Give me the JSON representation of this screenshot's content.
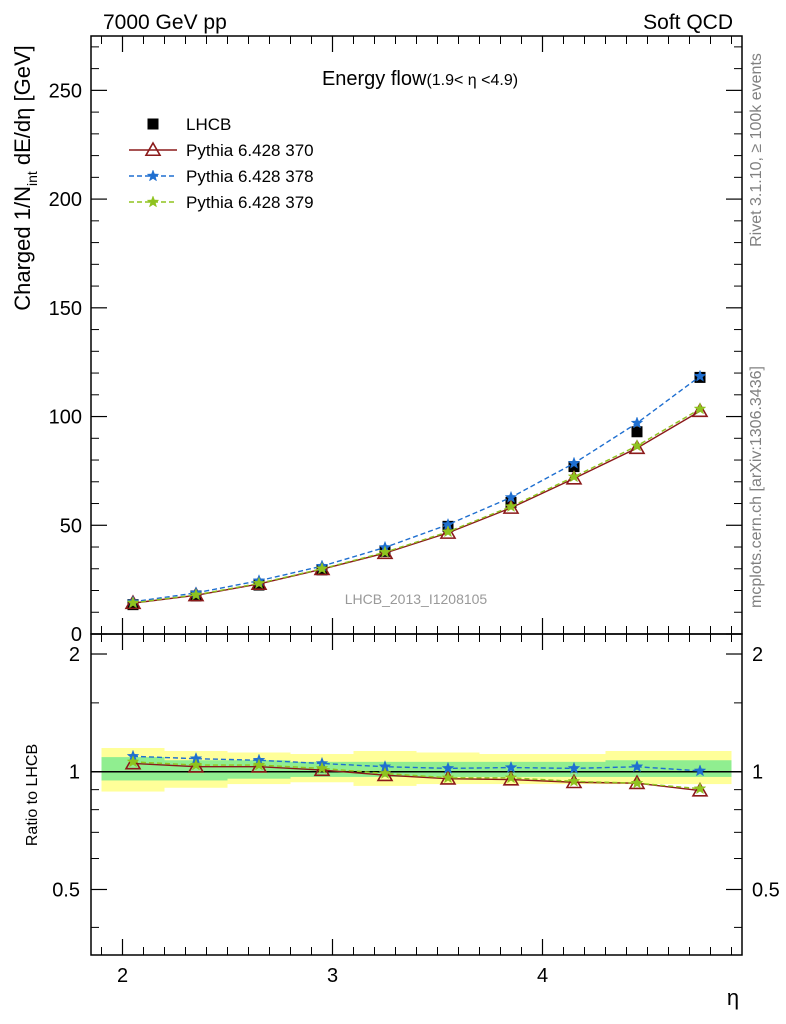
{
  "header": {
    "left": "7000 GeV pp",
    "right": "Soft QCD"
  },
  "side_labels": {
    "rivet": "Rivet 3.1.10, ≥ 100k events",
    "mcplots": "mcplots.cern.ch [arXiv:1306.3436]"
  },
  "chart_data": [
    {
      "type": "line",
      "panel": "main",
      "title": "Energy flow",
      "title_sub": "(1.9< η <4.9)",
      "ylabel": {
        "main": "Charged 1/N",
        "sub": "int",
        "rest": " dE/dη [GeV]"
      },
      "xlim": [
        1.85,
        4.95
      ],
      "ylim": [
        0,
        275
      ],
      "y_ticks": [
        0,
        50,
        100,
        150,
        200,
        250
      ],
      "y_tick_labels": [
        "0",
        "50",
        "100",
        "150",
        "200",
        "250"
      ],
      "watermark": "LHCB_2013_I1208105",
      "legend_position": "top-left",
      "x": [
        2.05,
        2.35,
        2.65,
        2.95,
        3.25,
        3.55,
        3.85,
        4.15,
        4.45,
        4.75
      ],
      "series": [
        {
          "name": "LHCB",
          "style": "data",
          "color": "#000000",
          "values": [
            13.5,
            17.5,
            22.5,
            29.5,
            38.0,
            49.5,
            60.5,
            77.0,
            93.0,
            118.0
          ]
        },
        {
          "name": "Pythia 6.428 370",
          "style": "triangle-solid",
          "color": "#8b1a1a",
          "values": [
            14.2,
            17.8,
            23.0,
            29.8,
            37.2,
            46.5,
            58.0,
            71.5,
            85.5,
            102.5
          ]
        },
        {
          "name": "Pythia 6.428 378",
          "style": "star-dashed",
          "color": "#1f6fd0",
          "values": [
            14.8,
            18.9,
            24.5,
            31.2,
            39.8,
            50.3,
            62.8,
            78.5,
            97.0,
            118.5
          ]
        },
        {
          "name": "Pythia 6.428 379",
          "style": "star-dashed",
          "color": "#8fc31f",
          "values": [
            14.3,
            18.0,
            23.3,
            30.0,
            37.6,
            47.0,
            58.6,
            72.3,
            86.5,
            103.5
          ]
        }
      ]
    },
    {
      "type": "line",
      "panel": "ratio",
      "ylabel": "Ratio to LHCB",
      "xlabel": "η",
      "xlim": [
        1.85,
        4.95
      ],
      "ylim": [
        0.34,
        2.25
      ],
      "x_ticks": [
        2,
        3,
        4
      ],
      "x_tick_labels": [
        "2",
        "3",
        "4"
      ],
      "y_ticks": [
        0.5,
        1,
        2
      ],
      "y_tick_labels": [
        "0.5",
        "1",
        "2"
      ],
      "x_edges": [
        1.9,
        2.2,
        2.5,
        2.8,
        3.1,
        3.4,
        3.7,
        4.0,
        4.3,
        4.6,
        4.9
      ],
      "band_inner": {
        "color": "#90ee90",
        "low": [
          0.95,
          0.95,
          0.96,
          0.97,
          0.97,
          0.97,
          0.97,
          0.97,
          0.97,
          0.97
        ],
        "high": [
          1.09,
          1.07,
          1.07,
          1.06,
          1.06,
          1.06,
          1.06,
          1.06,
          1.07,
          1.07
        ]
      },
      "band_outer": {
        "color": "#ffff99",
        "low": [
          0.89,
          0.91,
          0.93,
          0.94,
          0.92,
          0.93,
          0.93,
          0.93,
          0.93,
          0.93
        ],
        "high": [
          1.15,
          1.13,
          1.12,
          1.11,
          1.13,
          1.12,
          1.11,
          1.11,
          1.13,
          1.13
        ]
      },
      "x": [
        2.05,
        2.35,
        2.65,
        2.95,
        3.25,
        3.55,
        3.85,
        4.15,
        4.45,
        4.75
      ],
      "series": [
        {
          "name": "Pythia 6.428 370",
          "style": "triangle-solid",
          "color": "#8b1a1a",
          "values": [
            1.05,
            1.03,
            1.03,
            1.01,
            0.98,
            0.96,
            0.955,
            0.94,
            0.935,
            0.895
          ]
        },
        {
          "name": "Pythia 6.428 378",
          "style": "star-dashed",
          "color": "#1f6fd0",
          "values": [
            1.095,
            1.08,
            1.07,
            1.05,
            1.03,
            1.02,
            1.025,
            1.02,
            1.03,
            1.005
          ]
        },
        {
          "name": "Pythia 6.428 379",
          "style": "star-dashed",
          "color": "#8fc31f",
          "values": [
            1.06,
            1.04,
            1.04,
            1.02,
            0.99,
            0.965,
            0.965,
            0.945,
            0.935,
            0.905
          ]
        }
      ]
    }
  ]
}
